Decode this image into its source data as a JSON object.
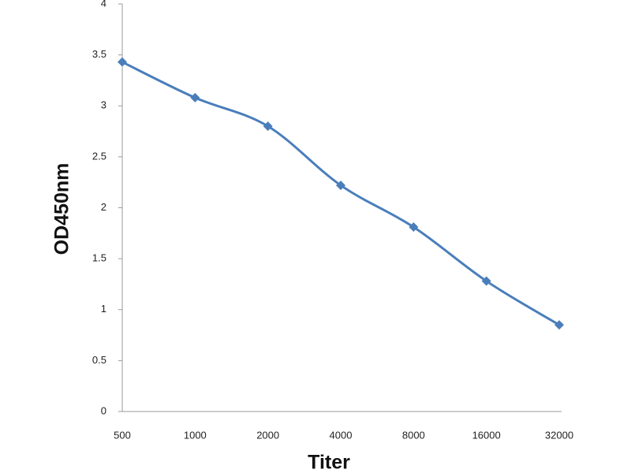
{
  "chart_data": {
    "type": "line",
    "x_label": "Titer",
    "y_label": "OD450nm",
    "categories": [
      "500",
      "1000",
      "2000",
      "4000",
      "8000",
      "16000",
      "32000"
    ],
    "series": [
      {
        "name": "OD450nm",
        "color": "#4a7ebb",
        "values": [
          3.43,
          3.08,
          2.8,
          2.22,
          1.81,
          1.28,
          0.85
        ]
      }
    ],
    "ylim": [
      0,
      4
    ],
    "yticks": [
      0,
      0.5,
      1,
      1.5,
      2,
      2.5,
      3,
      3.5,
      4
    ],
    "grid": false
  }
}
